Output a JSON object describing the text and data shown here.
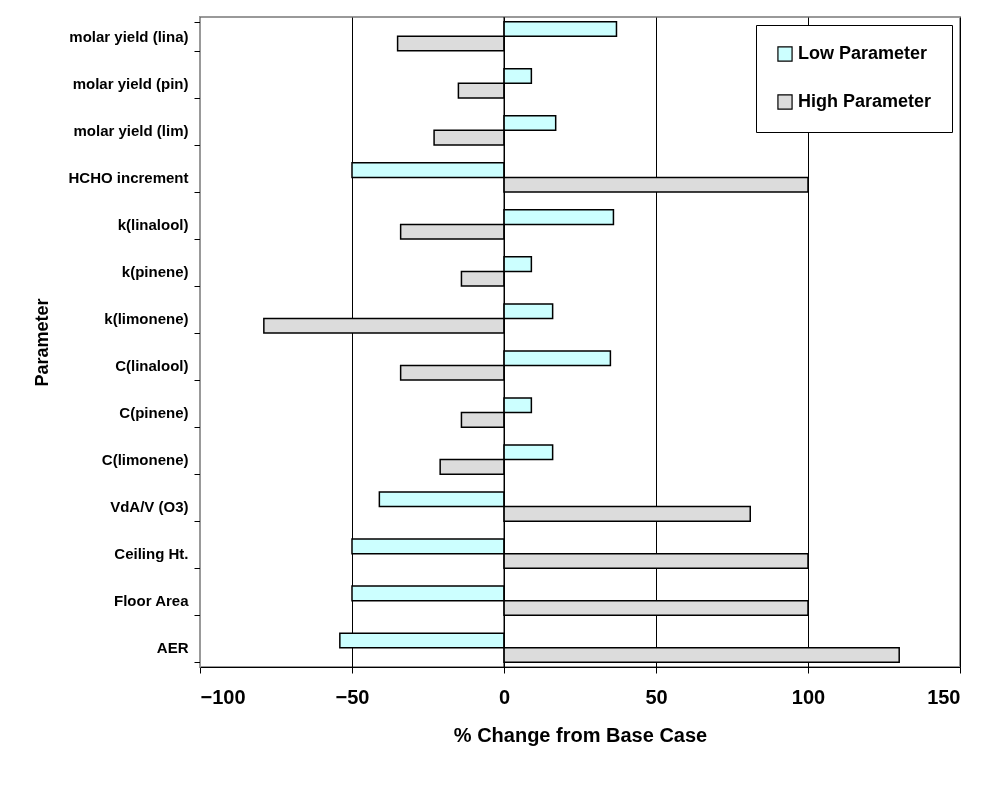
{
  "chart_data": {
    "type": "bar",
    "orientation": "horizontal",
    "xlabel": "% Change from Base Case",
    "ylabel": "Parameter",
    "categories": [
      "molar yield (lina)",
      "molar yield (pin)",
      "molar yield (lim)",
      "HCHO increment",
      "k(linalool)",
      "k(pinene)",
      "k(limonene)",
      "C(linalool)",
      "C(pinene)",
      "C(limonene)",
      "VdA/V (O3)",
      "Ceiling Ht.",
      "Floor Area",
      "AER"
    ],
    "series": [
      {
        "name": "Low Parameter",
        "color": "#ccffff",
        "values": [
          37,
          9,
          17,
          -50,
          36,
          9,
          16,
          35,
          9,
          16,
          -41,
          -50,
          -50,
          -54
        ]
      },
      {
        "name": "High Parameter",
        "color": "#dcdcdc",
        "values": [
          -35,
          -15,
          -23,
          100,
          -34,
          -14,
          -79,
          -34,
          -14,
          -21,
          81,
          100,
          100,
          130
        ]
      }
    ],
    "xlim": [
      -100,
      150
    ],
    "xticks": [
      -100,
      -50,
      0,
      50,
      100,
      150
    ],
    "grid": "x",
    "legend": "top right"
  }
}
